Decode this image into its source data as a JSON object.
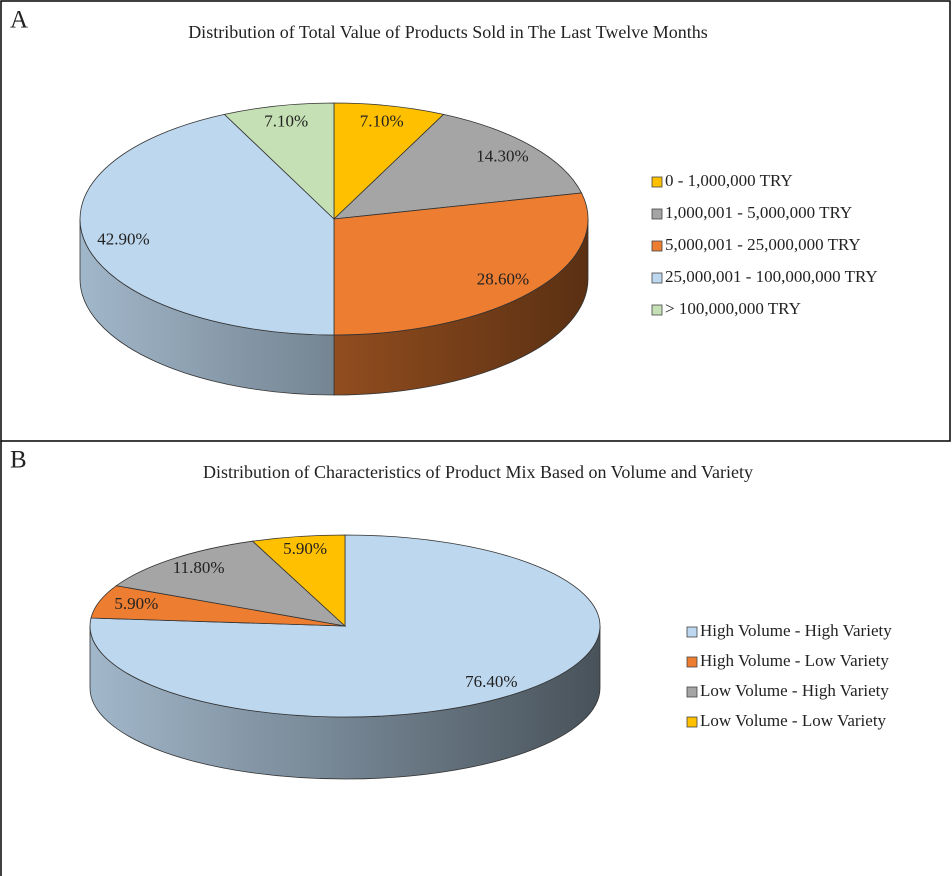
{
  "chart_data": [
    {
      "type": "pie3d",
      "panel_label": "A",
      "title": "Distribution of Total Value of Products Sold in The Last Twelve Months",
      "categories": [
        "0 - 1,000,000 TRY",
        "1,000,001 - 5,000,000 TRY",
        "5,000,001 - 25,000,000 TRY",
        "25,000,001 - 100,000,000 TRY",
        "> 100,000,000 TRY"
      ],
      "values": [
        7.1,
        14.3,
        28.6,
        42.9,
        7.1
      ],
      "value_labels": [
        "7.10%",
        "14.30%",
        "28.60%",
        "42.90%",
        "7.10%"
      ],
      "colors": [
        "#ffc000",
        "#a5a5a5",
        "#ed7d31",
        "#bdd7ee",
        "#c5e0b4"
      ],
      "legend": "right"
    },
    {
      "type": "pie3d",
      "panel_label": "B",
      "title": "Distribution of Characteristics of Product Mix Based on Volume and Variety",
      "categories": [
        "High Volume - High Variety",
        "High Volume - Low Variety",
        "Low Volume - High Variety",
        "Low Volume - Low Variety"
      ],
      "values": [
        76.4,
        5.9,
        11.8,
        5.9
      ],
      "value_labels": [
        "76.40%",
        "5.90%",
        "11.80%",
        "5.90%"
      ],
      "colors": [
        "#bdd7ee",
        "#ed7d31",
        "#a5a5a5",
        "#ffc000"
      ],
      "legend": "right"
    }
  ]
}
